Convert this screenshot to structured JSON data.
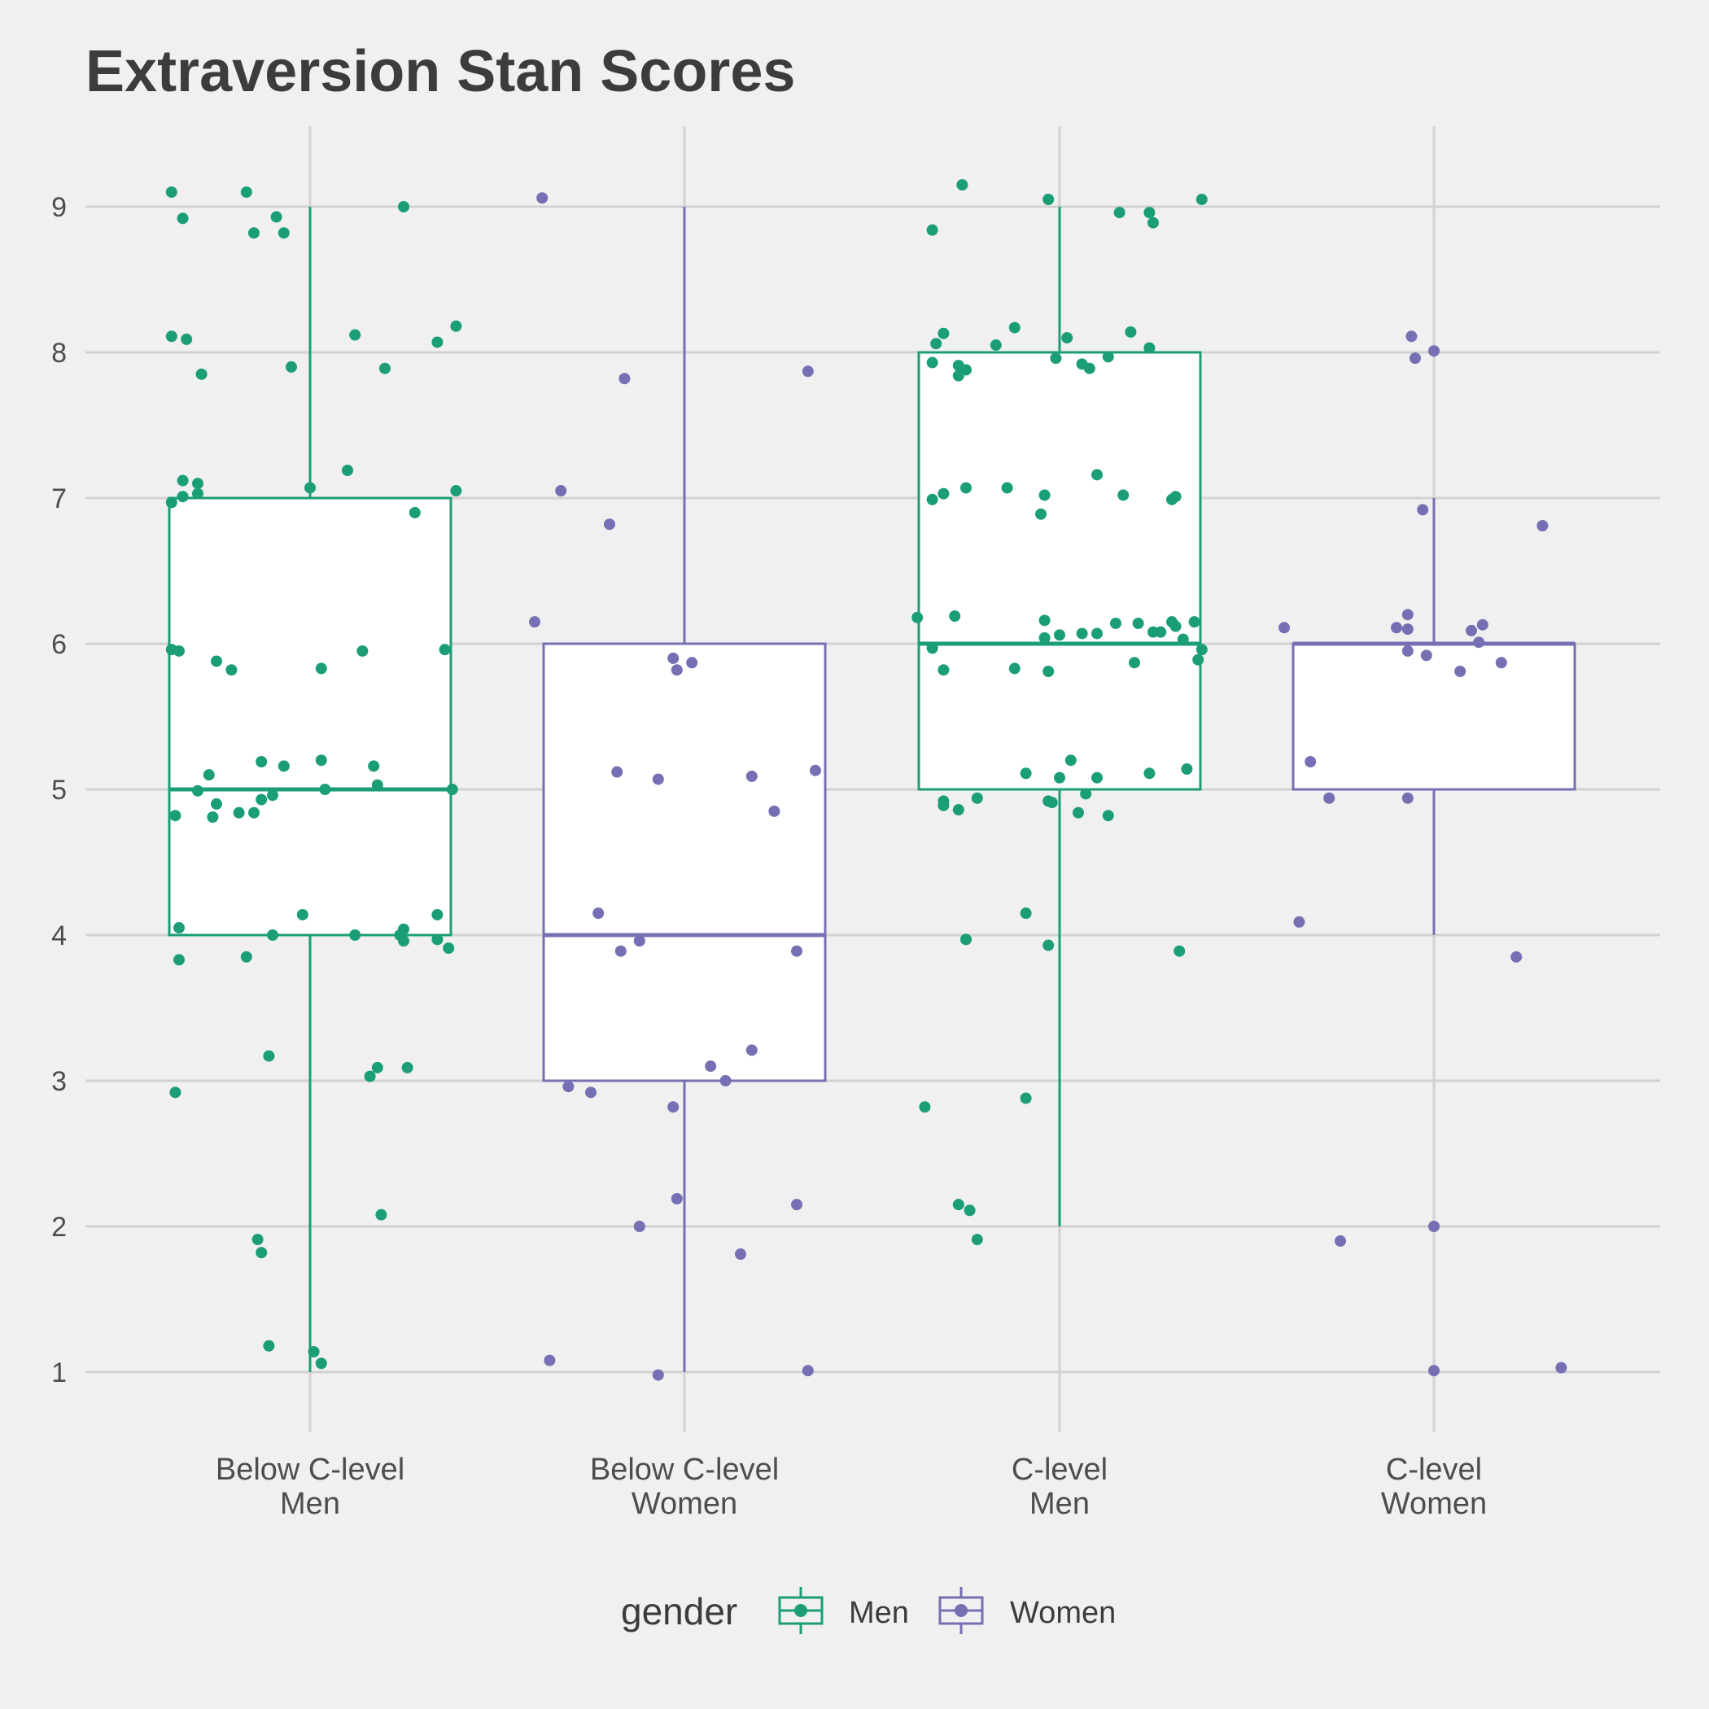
{
  "chart_data": {
    "type": "boxplot",
    "title": "Extraversion Stan Scores",
    "xlabel": "",
    "ylabel": "",
    "ylim": [
      0.6,
      9.55
    ],
    "yticks": [
      1,
      2,
      3,
      4,
      5,
      6,
      7,
      8,
      9
    ],
    "grid": true,
    "legend": {
      "title": "gender",
      "position": "bottom",
      "entries": [
        "Men",
        "Women"
      ]
    },
    "colors": {
      "Men": "#1B9E77",
      "Women": "#7570B3"
    },
    "categories": [
      {
        "label": [
          "Below C-level",
          "Men"
        ],
        "group": "Men",
        "box": {
          "min": 1,
          "q1": 4,
          "median": 5,
          "q3": 7,
          "max": 9
        }
      },
      {
        "label": [
          "Below C-level",
          "Women"
        ],
        "group": "Women",
        "box": {
          "min": 1,
          "q1": 3,
          "median": 4,
          "q3": 6,
          "max": 9
        }
      },
      {
        "label": [
          "C-level",
          "Men"
        ],
        "group": "Men",
        "box": {
          "min": 2,
          "q1": 5,
          "median": 6,
          "q3": 8,
          "max": 9
        }
      },
      {
        "label": [
          "C-level",
          "Women"
        ],
        "group": "Women",
        "box": {
          "min": 4,
          "q1": 5,
          "median": 6,
          "q3": 6,
          "max": 7
        }
      }
    ],
    "points": [
      [
        [
          -0.37,
          9.1
        ],
        [
          -0.34,
          8.92
        ],
        [
          -0.17,
          9.1
        ],
        [
          -0.09,
          8.93
        ],
        [
          -0.15,
          8.82
        ],
        [
          -0.07,
          8.82
        ],
        [
          0.25,
          9.0
        ],
        [
          -0.37,
          8.11
        ],
        [
          -0.33,
          8.09
        ],
        [
          -0.29,
          7.85
        ],
        [
          -0.05,
          7.9
        ],
        [
          0.12,
          8.12
        ],
        [
          0.2,
          7.89
        ],
        [
          0.34,
          8.07
        ],
        [
          0.39,
          8.18
        ],
        [
          -0.34,
          7.12
        ],
        [
          -0.3,
          7.1
        ],
        [
          -0.3,
          7.03
        ],
        [
          -0.34,
          7.01
        ],
        [
          -0.37,
          6.97
        ],
        [
          0.0,
          7.07
        ],
        [
          0.1,
          7.19
        ],
        [
          0.28,
          6.9
        ],
        [
          0.39,
          7.05
        ],
        [
          -0.37,
          5.96
        ],
        [
          -0.35,
          5.95
        ],
        [
          -0.25,
          5.88
        ],
        [
          -0.21,
          5.82
        ],
        [
          0.03,
          5.83
        ],
        [
          0.14,
          5.95
        ],
        [
          0.36,
          5.96
        ],
        [
          -0.27,
          5.1
        ],
        [
          -0.13,
          5.19
        ],
        [
          -0.07,
          5.16
        ],
        [
          0.03,
          5.2
        ],
        [
          0.17,
          5.16
        ],
        [
          0.18,
          5.03
        ],
        [
          0.04,
          5.0
        ],
        [
          -0.3,
          4.99
        ],
        [
          -0.25,
          4.9
        ],
        [
          -0.36,
          4.82
        ],
        [
          -0.26,
          4.81
        ],
        [
          -0.19,
          4.84
        ],
        [
          -0.15,
          4.84
        ],
        [
          -0.13,
          4.93
        ],
        [
          -0.1,
          4.96
        ],
        [
          0.38,
          5.0
        ],
        [
          -0.35,
          4.05
        ],
        [
          -0.02,
          4.14
        ],
        [
          -0.1,
          4.0
        ],
        [
          -0.35,
          3.83
        ],
        [
          -0.17,
          3.85
        ],
        [
          0.12,
          4.0
        ],
        [
          0.24,
          4.0
        ],
        [
          0.25,
          3.96
        ],
        [
          0.25,
          4.04
        ],
        [
          0.34,
          4.14
        ],
        [
          0.34,
          3.97
        ],
        [
          0.37,
          3.91
        ],
        [
          -0.36,
          2.92
        ],
        [
          -0.11,
          3.17
        ],
        [
          0.16,
          3.03
        ],
        [
          0.18,
          3.09
        ],
        [
          0.26,
          3.09
        ],
        [
          0.19,
          2.08
        ],
        [
          -0.14,
          1.91
        ],
        [
          -0.13,
          1.82
        ],
        [
          -0.11,
          1.18
        ],
        [
          0.01,
          1.14
        ],
        [
          0.03,
          1.06
        ]
      ],
      [
        [
          -0.38,
          9.06
        ],
        [
          -0.16,
          7.82
        ],
        [
          0.33,
          7.87
        ],
        [
          -0.33,
          7.05
        ],
        [
          -0.2,
          6.82
        ],
        [
          -0.4,
          6.15
        ],
        [
          -0.03,
          5.9
        ],
        [
          0.02,
          5.87
        ],
        [
          -0.02,
          5.82
        ],
        [
          -0.18,
          5.12
        ],
        [
          -0.07,
          5.07
        ],
        [
          0.18,
          5.09
        ],
        [
          0.24,
          4.85
        ],
        [
          0.35,
          5.13
        ],
        [
          -0.23,
          4.15
        ],
        [
          -0.17,
          3.89
        ],
        [
          -0.12,
          3.96
        ],
        [
          0.3,
          3.89
        ],
        [
          0.07,
          3.1
        ],
        [
          0.11,
          3.0
        ],
        [
          0.18,
          3.21
        ],
        [
          -0.31,
          2.96
        ],
        [
          -0.25,
          2.92
        ],
        [
          -0.03,
          2.82
        ],
        [
          -0.02,
          2.19
        ],
        [
          -0.12,
          2.0
        ],
        [
          0.15,
          1.81
        ],
        [
          0.3,
          2.15
        ],
        [
          -0.36,
          1.08
        ],
        [
          -0.07,
          0.98
        ],
        [
          0.33,
          1.01
        ]
      ],
      [
        [
          -0.34,
          8.84
        ],
        [
          -0.26,
          9.15
        ],
        [
          -0.03,
          9.05
        ],
        [
          0.16,
          8.96
        ],
        [
          0.24,
          8.96
        ],
        [
          0.25,
          8.89
        ],
        [
          0.38,
          9.05
        ],
        [
          -0.33,
          8.06
        ],
        [
          -0.31,
          8.13
        ],
        [
          -0.34,
          7.93
        ],
        [
          -0.27,
          7.91
        ],
        [
          -0.27,
          7.84
        ],
        [
          -0.25,
          7.88
        ],
        [
          -0.17,
          8.05
        ],
        [
          -0.12,
          8.17
        ],
        [
          -0.01,
          7.96
        ],
        [
          0.02,
          8.1
        ],
        [
          0.06,
          7.92
        ],
        [
          0.08,
          7.89
        ],
        [
          0.13,
          7.97
        ],
        [
          0.19,
          8.14
        ],
        [
          0.24,
          8.03
        ],
        [
          -0.34,
          6.99
        ],
        [
          -0.31,
          7.03
        ],
        [
          -0.25,
          7.07
        ],
        [
          -0.14,
          7.07
        ],
        [
          -0.05,
          6.89
        ],
        [
          -0.04,
          7.02
        ],
        [
          0.1,
          7.16
        ],
        [
          0.17,
          7.02
        ],
        [
          0.3,
          6.99
        ],
        [
          0.31,
          7.01
        ],
        [
          -0.38,
          6.18
        ],
        [
          -0.28,
          6.19
        ],
        [
          -0.34,
          5.97
        ],
        [
          -0.31,
          5.82
        ],
        [
          -0.12,
          5.83
        ],
        [
          -0.04,
          6.16
        ],
        [
          -0.04,
          6.04
        ],
        [
          -0.03,
          5.81
        ],
        [
          0.0,
          6.06
        ],
        [
          0.06,
          6.07
        ],
        [
          0.1,
          6.07
        ],
        [
          0.15,
          6.14
        ],
        [
          0.2,
          5.87
        ],
        [
          0.21,
          6.14
        ],
        [
          0.25,
          6.08
        ],
        [
          0.27,
          6.08
        ],
        [
          0.3,
          6.15
        ],
        [
          0.31,
          6.12
        ],
        [
          0.33,
          6.03
        ],
        [
          0.36,
          6.15
        ],
        [
          0.37,
          5.89
        ],
        [
          0.38,
          5.96
        ],
        [
          -0.31,
          4.92
        ],
        [
          -0.31,
          4.89
        ],
        [
          -0.27,
          4.86
        ],
        [
          -0.22,
          4.94
        ],
        [
          -0.09,
          5.11
        ],
        [
          -0.03,
          4.92
        ],
        [
          -0.02,
          4.91
        ],
        [
          0.0,
          5.08
        ],
        [
          0.03,
          5.2
        ],
        [
          0.05,
          4.84
        ],
        [
          0.07,
          4.97
        ],
        [
          0.1,
          5.08
        ],
        [
          0.13,
          4.82
        ],
        [
          0.24,
          5.11
        ],
        [
          0.34,
          5.14
        ],
        [
          -0.25,
          3.97
        ],
        [
          -0.09,
          4.15
        ],
        [
          -0.03,
          3.93
        ],
        [
          0.32,
          3.89
        ],
        [
          -0.36,
          2.82
        ],
        [
          -0.09,
          2.88
        ],
        [
          -0.27,
          2.15
        ],
        [
          -0.24,
          2.11
        ],
        [
          -0.22,
          1.91
        ]
      ],
      [
        [
          -0.4,
          6.11
        ],
        [
          -0.1,
          6.11
        ],
        [
          -0.07,
          6.2
        ],
        [
          -0.07,
          6.1
        ],
        [
          -0.07,
          5.95
        ],
        [
          -0.02,
          5.92
        ],
        [
          0.1,
          6.09
        ],
        [
          0.12,
          6.01
        ],
        [
          0.13,
          6.13
        ],
        [
          0.07,
          5.81
        ],
        [
          0.18,
          5.87
        ],
        [
          -0.03,
          6.92
        ],
        [
          -0.06,
          8.11
        ],
        [
          -0.05,
          7.96
        ],
        [
          0.0,
          8.01
        ],
        [
          0.29,
          6.81
        ],
        [
          -0.33,
          5.19
        ],
        [
          -0.28,
          4.94
        ],
        [
          -0.07,
          4.94
        ],
        [
          -0.36,
          4.09
        ],
        [
          0.22,
          3.85
        ],
        [
          -0.25,
          1.9
        ],
        [
          0.0,
          2.0
        ],
        [
          0.0,
          1.01
        ],
        [
          0.34,
          1.03
        ]
      ]
    ]
  }
}
